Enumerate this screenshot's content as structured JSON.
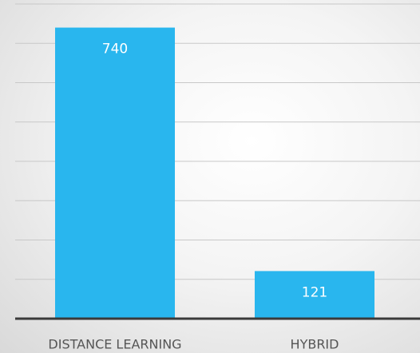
{
  "chart_data": {
    "type": "bar",
    "categories": [
      "DISTANCE LEARNING",
      "HYBRID"
    ],
    "values": [
      740,
      121
    ],
    "color": "#29b6ee",
    "ylim": [
      0,
      800
    ],
    "yticks": [
      0,
      100,
      200,
      300,
      400,
      500,
      600,
      700,
      800
    ],
    "grid": true
  }
}
